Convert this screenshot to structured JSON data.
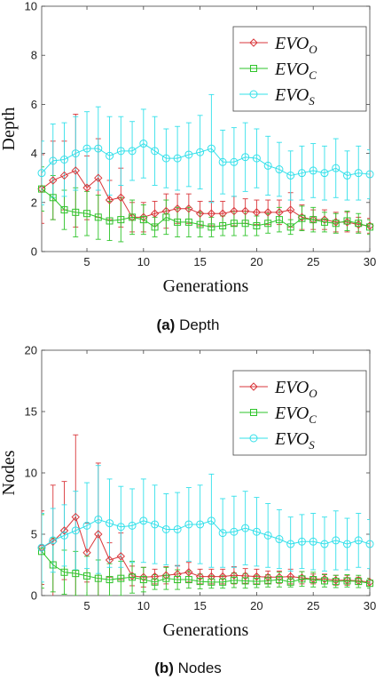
{
  "captions": [
    {
      "tag": "(a)",
      "text": "Depth"
    },
    {
      "tag": "(b)",
      "text": "Nodes"
    }
  ],
  "legend": [
    {
      "base": "EVO",
      "sub": "O",
      "color": "#d9373b",
      "marker": "diamond"
    },
    {
      "base": "EVO",
      "sub": "C",
      "color": "#2ec42a",
      "marker": "square"
    },
    {
      "base": "EVO",
      "sub": "S",
      "color": "#33e0ea",
      "marker": "circle"
    }
  ],
  "chart_data": [
    {
      "type": "line",
      "xlabel": "Generations",
      "ylabel": "Depth",
      "xlim": [
        1,
        30
      ],
      "ylim": [
        0,
        10
      ],
      "xticks": [
        5,
        10,
        15,
        20,
        25,
        30
      ],
      "yticks": [
        0,
        2,
        4,
        6,
        8,
        10
      ],
      "legend_position": "top-right",
      "grid": false,
      "x": [
        1,
        2,
        3,
        4,
        5,
        6,
        7,
        8,
        9,
        10,
        11,
        12,
        13,
        14,
        15,
        16,
        17,
        18,
        19,
        20,
        21,
        22,
        23,
        24,
        25,
        26,
        27,
        28,
        29,
        30
      ],
      "series": [
        {
          "name": "EVO_O",
          "values": [
            2.55,
            2.9,
            3.1,
            3.3,
            2.6,
            3.0,
            2.1,
            2.2,
            1.4,
            1.4,
            1.55,
            1.65,
            1.75,
            1.75,
            1.55,
            1.55,
            1.55,
            1.65,
            1.65,
            1.6,
            1.6,
            1.6,
            1.7,
            1.4,
            1.3,
            1.3,
            1.2,
            1.2,
            1.1,
            1.05
          ],
          "err": [
            1.4,
            1.6,
            1.4,
            2.3,
            1.3,
            1.6,
            0.8,
            1.2,
            0.6,
            0.6,
            0.5,
            0.7,
            0.6,
            0.6,
            0.5,
            0.5,
            0.5,
            0.6,
            0.5,
            0.5,
            0.5,
            0.5,
            0.7,
            0.5,
            0.4,
            0.4,
            0.4,
            0.4,
            0.3,
            0.3
          ]
        },
        {
          "name": "EVO_C",
          "values": [
            2.55,
            2.2,
            1.7,
            1.6,
            1.55,
            1.4,
            1.25,
            1.3,
            1.4,
            1.3,
            1.0,
            1.4,
            1.2,
            1.2,
            1.1,
            1.0,
            1.05,
            1.15,
            1.15,
            1.05,
            1.15,
            1.3,
            1.0,
            1.35,
            1.3,
            1.2,
            1.15,
            1.25,
            1.15,
            1.0
          ],
          "err": [
            0.9,
            0.9,
            0.8,
            1.0,
            0.9,
            0.9,
            0.8,
            0.9,
            0.7,
            0.6,
            0.4,
            0.7,
            0.6,
            0.6,
            0.5,
            0.4,
            0.4,
            0.5,
            0.5,
            0.4,
            0.4,
            0.5,
            0.3,
            0.5,
            0.5,
            0.4,
            0.4,
            0.4,
            0.4,
            0.3
          ]
        },
        {
          "name": "EVO_S",
          "values": [
            3.2,
            3.7,
            3.75,
            4.0,
            4.2,
            4.2,
            3.9,
            4.1,
            4.1,
            4.4,
            4.1,
            3.8,
            3.8,
            3.95,
            4.05,
            4.2,
            3.65,
            3.65,
            3.85,
            3.8,
            3.5,
            3.35,
            3.1,
            3.2,
            3.3,
            3.2,
            3.4,
            3.1,
            3.2,
            3.15
          ]
        },
        {
          "name": "EVO_S_err",
          "values": [
            1.3,
            1.5,
            1.5,
            1.5,
            1.5,
            1.7,
            1.6,
            1.4,
            1.2,
            1.4,
            1.4,
            1.2,
            1.3,
            1.3,
            1.5,
            2.2,
            1.3,
            1.4,
            1.4,
            1.2,
            1.2,
            1.1,
            1.0,
            1.1,
            1.1,
            1.1,
            1.2,
            1.0,
            1.1,
            1.0
          ]
        }
      ]
    },
    {
      "type": "line",
      "xlabel": "Generations",
      "ylabel": "Nodes",
      "xlim": [
        1,
        30
      ],
      "ylim": [
        0,
        20
      ],
      "xticks": [
        5,
        10,
        15,
        20,
        25,
        30
      ],
      "yticks": [
        0,
        5,
        10,
        15,
        20
      ],
      "legend_position": "top-right",
      "grid": false,
      "x": [
        1,
        2,
        3,
        4,
        5,
        6,
        7,
        8,
        9,
        10,
        11,
        12,
        13,
        14,
        15,
        16,
        17,
        18,
        19,
        20,
        21,
        22,
        23,
        24,
        25,
        26,
        27,
        28,
        29,
        30
      ],
      "series": [
        {
          "name": "EVO_O",
          "values": [
            3.9,
            4.4,
            5.3,
            6.4,
            3.5,
            5.0,
            2.9,
            3.2,
            1.6,
            1.5,
            1.55,
            1.65,
            1.75,
            1.9,
            1.55,
            1.55,
            1.55,
            1.65,
            1.6,
            1.55,
            1.5,
            1.5,
            1.55,
            1.45,
            1.35,
            1.35,
            1.25,
            1.25,
            1.2,
            1.1
          ],
          "err": [
            3.0,
            4.6,
            4.0,
            6.7,
            2.4,
            5.8,
            1.4,
            1.9,
            0.8,
            0.8,
            0.6,
            0.7,
            0.7,
            0.8,
            0.6,
            0.6,
            0.6,
            0.7,
            0.6,
            0.6,
            0.5,
            0.5,
            0.6,
            0.5,
            0.4,
            0.4,
            0.4,
            0.4,
            0.3,
            0.3
          ]
        },
        {
          "name": "EVO_C",
          "values": [
            3.6,
            2.5,
            1.9,
            1.8,
            1.6,
            1.4,
            1.3,
            1.4,
            1.5,
            1.3,
            1.1,
            1.4,
            1.3,
            1.3,
            1.15,
            1.1,
            1.1,
            1.25,
            1.2,
            1.15,
            1.2,
            1.3,
            1.1,
            1.35,
            1.3,
            1.2,
            1.15,
            1.2,
            1.15,
            1.0
          ],
          "err": [
            3.0,
            2.2,
            1.8,
            1.8,
            1.6,
            1.5,
            1.3,
            1.4,
            1.3,
            1.0,
            0.6,
            0.9,
            0.8,
            0.7,
            0.6,
            0.5,
            0.5,
            0.6,
            0.6,
            0.5,
            0.5,
            0.6,
            0.4,
            0.6,
            0.6,
            0.5,
            0.5,
            0.5,
            0.5,
            0.4
          ]
        },
        {
          "name": "EVO_S",
          "values": [
            3.9,
            4.5,
            4.9,
            5.3,
            5.7,
            6.2,
            5.9,
            5.6,
            5.7,
            6.1,
            5.8,
            5.4,
            5.4,
            5.8,
            5.8,
            6.1,
            5.1,
            5.2,
            5.5,
            5.2,
            4.9,
            4.6,
            4.2,
            4.4,
            4.4,
            4.2,
            4.5,
            4.2,
            4.5,
            4.2
          ]
        },
        {
          "name": "EVO_S_err",
          "values": [
            2.8,
            2.6,
            2.5,
            3.2,
            3.5,
            4.4,
            3.6,
            3.3,
            3.0,
            3.4,
            3.2,
            2.9,
            3.0,
            3.0,
            3.2,
            3.8,
            2.8,
            2.9,
            3.0,
            2.8,
            2.6,
            2.4,
            2.2,
            2.2,
            2.3,
            2.2,
            2.4,
            2.1,
            2.2,
            2.0
          ]
        }
      ]
    }
  ]
}
